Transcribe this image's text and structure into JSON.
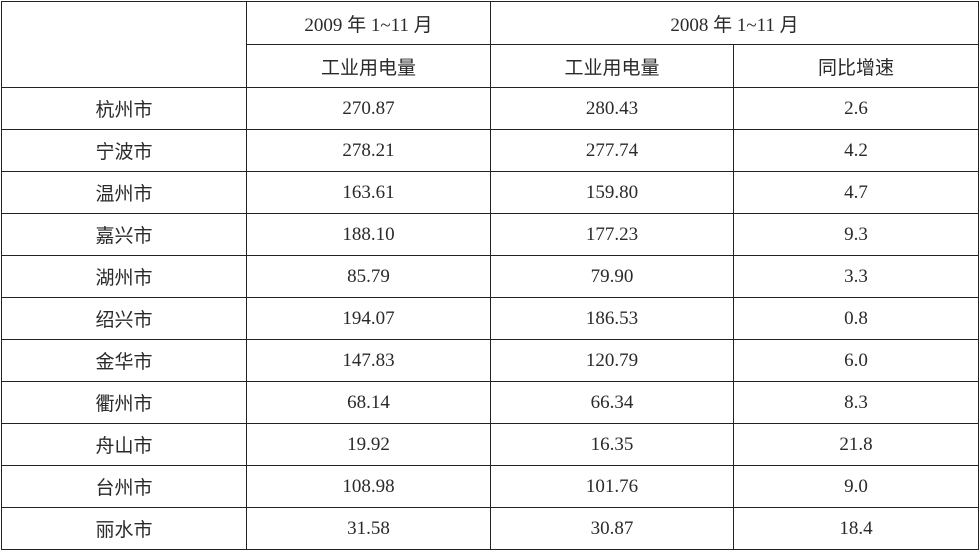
{
  "table": {
    "header": {
      "group_labels": [
        "2009 年 1~11 月",
        "2008 年 1~11 月"
      ],
      "column_labels": [
        "工业用电量",
        "工业用电量",
        "同比增速"
      ]
    },
    "rows": [
      [
        "杭州市",
        "270.87",
        "280.43",
        "2.6"
      ],
      [
        "宁波市",
        "278.21",
        "277.74",
        "4.2"
      ],
      [
        "温州市",
        "163.61",
        "159.80",
        "4.7"
      ],
      [
        "嘉兴市",
        "188.10",
        "177.23",
        "9.3"
      ],
      [
        "湖州市",
        "85.79",
        "79.90",
        "3.3"
      ],
      [
        "绍兴市",
        "194.07",
        "186.53",
        "0.8"
      ],
      [
        "金华市",
        "147.83",
        "120.79",
        "6.0"
      ],
      [
        "衢州市",
        "68.14",
        "66.34",
        "8.3"
      ],
      [
        "舟山市",
        "19.92",
        "16.35",
        "21.8"
      ],
      [
        "台州市",
        "108.98",
        "101.76",
        "9.0"
      ],
      [
        "丽水市",
        "31.58",
        "30.87",
        "18.4"
      ]
    ]
  }
}
